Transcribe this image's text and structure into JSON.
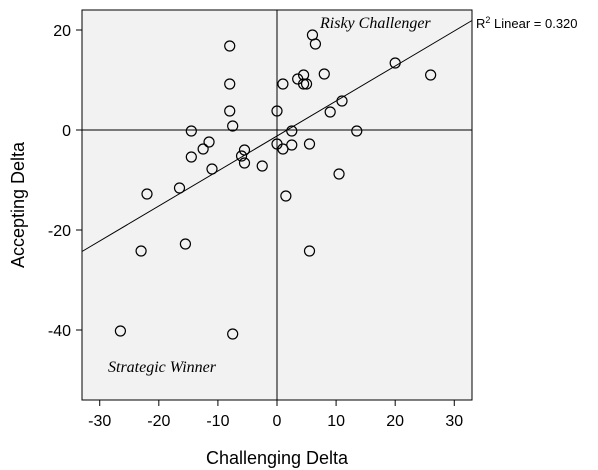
{
  "chart_data": {
    "type": "scatter",
    "xlabel": "Challenging Delta",
    "ylabel": "Accepting Delta",
    "xlim": [
      -33,
      33
    ],
    "ylim": [
      -54,
      24
    ],
    "xticks": [
      -30,
      -20,
      -10,
      0,
      10,
      20,
      30
    ],
    "yticks": [
      -40,
      -20,
      0,
      20
    ],
    "grid": false,
    "reference_lines": {
      "x": 0,
      "y": 0
    },
    "annotations": [
      "Risky Challenger",
      "Strategic Winner"
    ],
    "fit": {
      "label_prefix": "R",
      "label_sup": "2",
      "label_suffix": " Linear = 0.320",
      "intercept": -1.2,
      "slope": 0.7
    },
    "points": [
      [
        -26.5,
        -40.2
      ],
      [
        -23,
        -24.2
      ],
      [
        -22,
        -12.8
      ],
      [
        -16.5,
        -11.6
      ],
      [
        -15.5,
        -22.8
      ],
      [
        -14.5,
        -0.2
      ],
      [
        -14.5,
        -5.4
      ],
      [
        -12.5,
        -3.8
      ],
      [
        -11.5,
        -2.4
      ],
      [
        -11,
        -7.8
      ],
      [
        -8,
        16.8
      ],
      [
        -8,
        9.2
      ],
      [
        -8,
        3.8
      ],
      [
        -7.5,
        0.8
      ],
      [
        -7.5,
        -40.8
      ],
      [
        -6,
        -5.2
      ],
      [
        -5.5,
        -4
      ],
      [
        -5.5,
        -6.6
      ],
      [
        -2.5,
        -7.2
      ],
      [
        0,
        3.8
      ],
      [
        0,
        -2.8
      ],
      [
        1,
        -3.8
      ],
      [
        1.5,
        -13.2
      ],
      [
        1,
        9.2
      ],
      [
        2.5,
        -0.2
      ],
      [
        2.5,
        -3
      ],
      [
        3.5,
        10.2
      ],
      [
        4.5,
        11
      ],
      [
        4.5,
        9.2
      ],
      [
        5,
        9.2
      ],
      [
        5.5,
        -2.8
      ],
      [
        5.5,
        -24.2
      ],
      [
        6,
        19
      ],
      [
        6.5,
        17.2
      ],
      [
        8,
        11.2
      ],
      [
        9,
        3.6
      ],
      [
        10.5,
        -8.8
      ],
      [
        11,
        5.8
      ],
      [
        13.5,
        -0.2
      ],
      [
        20,
        13.4
      ],
      [
        26,
        11
      ]
    ]
  }
}
